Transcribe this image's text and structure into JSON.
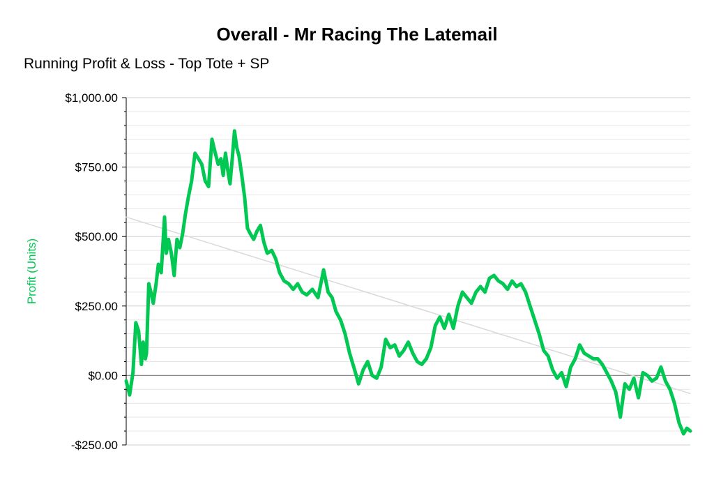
{
  "chart_data": {
    "type": "line",
    "title": "Overall - Mr Racing The Latemail",
    "subtitle": "Running Profit & Loss - Top Tote + SP",
    "xlabel": "",
    "ylabel": "Profit (Units)",
    "ylim": [
      -250,
      1000
    ],
    "y_ticks": [
      {
        "value": 1000,
        "label": "$1,000.00"
      },
      {
        "value": 750,
        "label": "$750.00"
      },
      {
        "value": 500,
        "label": "$500.00"
      },
      {
        "value": 250,
        "label": "$250.00"
      },
      {
        "value": 0,
        "label": "$0.00"
      },
      {
        "value": -250,
        "label": "-$250.00"
      }
    ],
    "grid": true,
    "x_domain": [
      0,
      1
    ],
    "series": [
      {
        "name": "",
        "color": "#00c853",
        "x": [
          0.0,
          0.006,
          0.012,
          0.017,
          0.022,
          0.027,
          0.03,
          0.034,
          0.036,
          0.04,
          0.045,
          0.048,
          0.053,
          0.057,
          0.062,
          0.068,
          0.071,
          0.075,
          0.08,
          0.085,
          0.09,
          0.095,
          0.1,
          0.105,
          0.11,
          0.116,
          0.122,
          0.128,
          0.134,
          0.14,
          0.146,
          0.152,
          0.158,
          0.163,
          0.168,
          0.172,
          0.176,
          0.18,
          0.184,
          0.188,
          0.192,
          0.196,
          0.2,
          0.205,
          0.21,
          0.215,
          0.22,
          0.226,
          0.232,
          0.238,
          0.244,
          0.25,
          0.258,
          0.265,
          0.272,
          0.28,
          0.288,
          0.296,
          0.304,
          0.312,
          0.32,
          0.33,
          0.34,
          0.35,
          0.358,
          0.365,
          0.372,
          0.38,
          0.388,
          0.396,
          0.405,
          0.412,
          0.42,
          0.428,
          0.436,
          0.444,
          0.452,
          0.46,
          0.468,
          0.476,
          0.484,
          0.492,
          0.5,
          0.508,
          0.516,
          0.524,
          0.532,
          0.54,
          0.548,
          0.556,
          0.564,
          0.572,
          0.58,
          0.588,
          0.596,
          0.604,
          0.612,
          0.62,
          0.628,
          0.636,
          0.644,
          0.652,
          0.66,
          0.668,
          0.676,
          0.684,
          0.692,
          0.7,
          0.708,
          0.716,
          0.724,
          0.732,
          0.74,
          0.748,
          0.756,
          0.764,
          0.772,
          0.78,
          0.788,
          0.796,
          0.804,
          0.812,
          0.82,
          0.828,
          0.836,
          0.844,
          0.852,
          0.86,
          0.868,
          0.876,
          0.884,
          0.892,
          0.9,
          0.908,
          0.916,
          0.924,
          0.932,
          0.94,
          0.948,
          0.956,
          0.964,
          0.972,
          0.98,
          0.988,
          0.994,
          1.0
        ],
        "values": [
          -20,
          -70,
          10,
          190,
          160,
          40,
          120,
          60,
          80,
          330,
          290,
          260,
          330,
          400,
          370,
          570,
          440,
          490,
          440,
          360,
          490,
          460,
          510,
          580,
          640,
          700,
          800,
          780,
          760,
          700,
          680,
          850,
          800,
          760,
          780,
          720,
          800,
          740,
          690,
          780,
          880,
          820,
          790,
          720,
          640,
          530,
          510,
          490,
          520,
          540,
          480,
          440,
          450,
          420,
          370,
          340,
          330,
          310,
          330,
          300,
          290,
          310,
          280,
          380,
          300,
          280,
          230,
          200,
          150,
          80,
          20,
          -30,
          20,
          50,
          0,
          -10,
          30,
          130,
          100,
          110,
          70,
          90,
          120,
          80,
          50,
          40,
          60,
          100,
          180,
          210,
          170,
          220,
          170,
          250,
          300,
          280,
          260,
          300,
          320,
          300,
          350,
          360,
          340,
          330,
          310,
          340,
          320,
          330,
          300,
          250,
          200,
          150,
          90,
          70,
          20,
          -10,
          10,
          -40,
          30,
          60,
          110,
          80,
          70,
          60,
          60,
          40,
          10,
          -20,
          -60,
          -150,
          -30,
          -50,
          -10,
          -80,
          10,
          0,
          -20,
          -10,
          30,
          -20,
          -50,
          -100,
          -170,
          -210,
          -190,
          -200
        ]
      },
      {
        "name": "",
        "color": "#d9d9d9",
        "x": [
          0,
          1
        ],
        "values": [
          570,
          -65
        ]
      }
    ]
  }
}
